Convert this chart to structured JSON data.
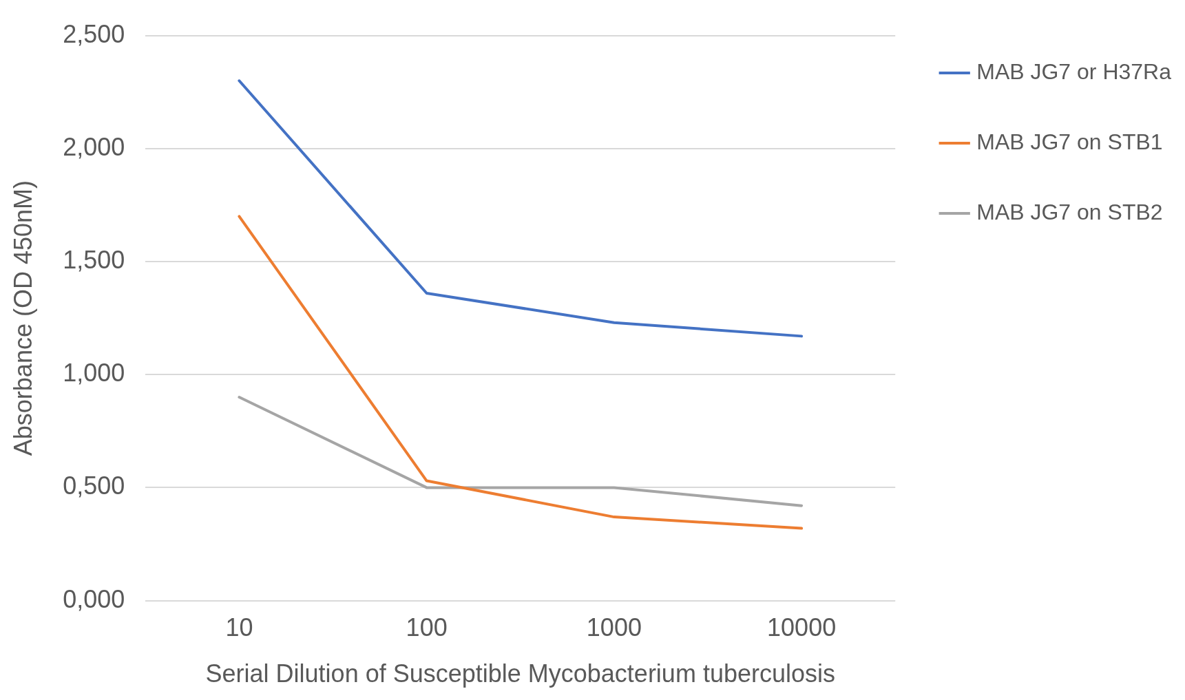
{
  "chart_data": {
    "type": "line",
    "xlabel": "Serial Dilution of Susceptible Mycobacterium tuberculosis",
    "ylabel": "Absorbance (OD 450nM)",
    "categories": [
      "10",
      "100",
      "1000",
      "10000"
    ],
    "series": [
      {
        "name": "MAB JG7 or H37Ra",
        "color": "#4472c4",
        "values": [
          2.3,
          1.36,
          1.23,
          1.17
        ]
      },
      {
        "name": "MAB JG7 on STB1",
        "color": "#ed7d31",
        "values": [
          1.7,
          0.53,
          0.37,
          0.32
        ]
      },
      {
        "name": "MAB JG7 on STB2",
        "color": "#a5a5a5",
        "values": [
          0.9,
          0.5,
          0.5,
          0.42
        ]
      }
    ],
    "ylim": [
      0,
      2.5
    ],
    "yticks": [
      {
        "value": 0,
        "label": "0,000"
      },
      {
        "value": 0.5,
        "label": "0,500"
      },
      {
        "value": 1,
        "label": "1,000"
      },
      {
        "value": 1.5,
        "label": "1,500"
      },
      {
        "value": 2,
        "label": "2,000"
      },
      {
        "value": 2.5,
        "label": "2,500"
      }
    ],
    "grid": "y",
    "legend": "right",
    "marker": "none",
    "line_style": "solid"
  }
}
